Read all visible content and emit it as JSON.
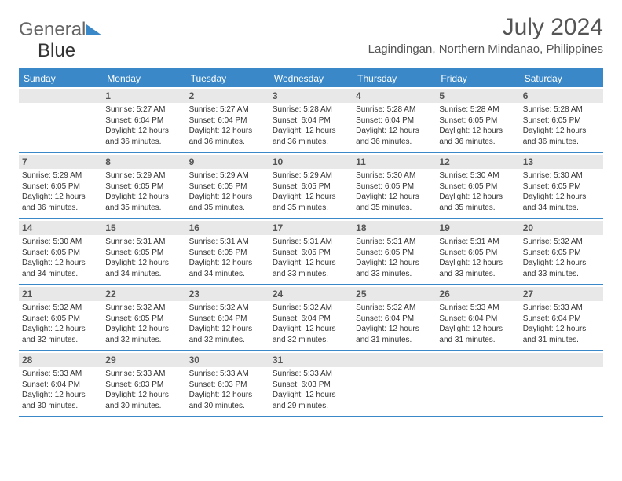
{
  "logo": {
    "part1": "General",
    "part2": "Blue"
  },
  "header": {
    "month_title": "July 2024",
    "location": "Lagindingan, Northern Mindanao, Philippines"
  },
  "colors": {
    "accent": "#3a88c8",
    "header_text": "#ffffff",
    "daynum_bg": "#e8e8e8",
    "text": "#333333",
    "title_text": "#555555"
  },
  "day_names": [
    "Sunday",
    "Monday",
    "Tuesday",
    "Wednesday",
    "Thursday",
    "Friday",
    "Saturday"
  ],
  "weeks": [
    [
      {
        "n": "",
        "sr": "",
        "ss": "",
        "dl": ""
      },
      {
        "n": "1",
        "sr": "Sunrise: 5:27 AM",
        "ss": "Sunset: 6:04 PM",
        "dl": "Daylight: 12 hours and 36 minutes."
      },
      {
        "n": "2",
        "sr": "Sunrise: 5:27 AM",
        "ss": "Sunset: 6:04 PM",
        "dl": "Daylight: 12 hours and 36 minutes."
      },
      {
        "n": "3",
        "sr": "Sunrise: 5:28 AM",
        "ss": "Sunset: 6:04 PM",
        "dl": "Daylight: 12 hours and 36 minutes."
      },
      {
        "n": "4",
        "sr": "Sunrise: 5:28 AM",
        "ss": "Sunset: 6:04 PM",
        "dl": "Daylight: 12 hours and 36 minutes."
      },
      {
        "n": "5",
        "sr": "Sunrise: 5:28 AM",
        "ss": "Sunset: 6:05 PM",
        "dl": "Daylight: 12 hours and 36 minutes."
      },
      {
        "n": "6",
        "sr": "Sunrise: 5:28 AM",
        "ss": "Sunset: 6:05 PM",
        "dl": "Daylight: 12 hours and 36 minutes."
      }
    ],
    [
      {
        "n": "7",
        "sr": "Sunrise: 5:29 AM",
        "ss": "Sunset: 6:05 PM",
        "dl": "Daylight: 12 hours and 36 minutes."
      },
      {
        "n": "8",
        "sr": "Sunrise: 5:29 AM",
        "ss": "Sunset: 6:05 PM",
        "dl": "Daylight: 12 hours and 35 minutes."
      },
      {
        "n": "9",
        "sr": "Sunrise: 5:29 AM",
        "ss": "Sunset: 6:05 PM",
        "dl": "Daylight: 12 hours and 35 minutes."
      },
      {
        "n": "10",
        "sr": "Sunrise: 5:29 AM",
        "ss": "Sunset: 6:05 PM",
        "dl": "Daylight: 12 hours and 35 minutes."
      },
      {
        "n": "11",
        "sr": "Sunrise: 5:30 AM",
        "ss": "Sunset: 6:05 PM",
        "dl": "Daylight: 12 hours and 35 minutes."
      },
      {
        "n": "12",
        "sr": "Sunrise: 5:30 AM",
        "ss": "Sunset: 6:05 PM",
        "dl": "Daylight: 12 hours and 35 minutes."
      },
      {
        "n": "13",
        "sr": "Sunrise: 5:30 AM",
        "ss": "Sunset: 6:05 PM",
        "dl": "Daylight: 12 hours and 34 minutes."
      }
    ],
    [
      {
        "n": "14",
        "sr": "Sunrise: 5:30 AM",
        "ss": "Sunset: 6:05 PM",
        "dl": "Daylight: 12 hours and 34 minutes."
      },
      {
        "n": "15",
        "sr": "Sunrise: 5:31 AM",
        "ss": "Sunset: 6:05 PM",
        "dl": "Daylight: 12 hours and 34 minutes."
      },
      {
        "n": "16",
        "sr": "Sunrise: 5:31 AM",
        "ss": "Sunset: 6:05 PM",
        "dl": "Daylight: 12 hours and 34 minutes."
      },
      {
        "n": "17",
        "sr": "Sunrise: 5:31 AM",
        "ss": "Sunset: 6:05 PM",
        "dl": "Daylight: 12 hours and 33 minutes."
      },
      {
        "n": "18",
        "sr": "Sunrise: 5:31 AM",
        "ss": "Sunset: 6:05 PM",
        "dl": "Daylight: 12 hours and 33 minutes."
      },
      {
        "n": "19",
        "sr": "Sunrise: 5:31 AM",
        "ss": "Sunset: 6:05 PM",
        "dl": "Daylight: 12 hours and 33 minutes."
      },
      {
        "n": "20",
        "sr": "Sunrise: 5:32 AM",
        "ss": "Sunset: 6:05 PM",
        "dl": "Daylight: 12 hours and 33 minutes."
      }
    ],
    [
      {
        "n": "21",
        "sr": "Sunrise: 5:32 AM",
        "ss": "Sunset: 6:05 PM",
        "dl": "Daylight: 12 hours and 32 minutes."
      },
      {
        "n": "22",
        "sr": "Sunrise: 5:32 AM",
        "ss": "Sunset: 6:05 PM",
        "dl": "Daylight: 12 hours and 32 minutes."
      },
      {
        "n": "23",
        "sr": "Sunrise: 5:32 AM",
        "ss": "Sunset: 6:04 PM",
        "dl": "Daylight: 12 hours and 32 minutes."
      },
      {
        "n": "24",
        "sr": "Sunrise: 5:32 AM",
        "ss": "Sunset: 6:04 PM",
        "dl": "Daylight: 12 hours and 32 minutes."
      },
      {
        "n": "25",
        "sr": "Sunrise: 5:32 AM",
        "ss": "Sunset: 6:04 PM",
        "dl": "Daylight: 12 hours and 31 minutes."
      },
      {
        "n": "26",
        "sr": "Sunrise: 5:33 AM",
        "ss": "Sunset: 6:04 PM",
        "dl": "Daylight: 12 hours and 31 minutes."
      },
      {
        "n": "27",
        "sr": "Sunrise: 5:33 AM",
        "ss": "Sunset: 6:04 PM",
        "dl": "Daylight: 12 hours and 31 minutes."
      }
    ],
    [
      {
        "n": "28",
        "sr": "Sunrise: 5:33 AM",
        "ss": "Sunset: 6:04 PM",
        "dl": "Daylight: 12 hours and 30 minutes."
      },
      {
        "n": "29",
        "sr": "Sunrise: 5:33 AM",
        "ss": "Sunset: 6:03 PM",
        "dl": "Daylight: 12 hours and 30 minutes."
      },
      {
        "n": "30",
        "sr": "Sunrise: 5:33 AM",
        "ss": "Sunset: 6:03 PM",
        "dl": "Daylight: 12 hours and 30 minutes."
      },
      {
        "n": "31",
        "sr": "Sunrise: 5:33 AM",
        "ss": "Sunset: 6:03 PM",
        "dl": "Daylight: 12 hours and 29 minutes."
      },
      {
        "n": "",
        "sr": "",
        "ss": "",
        "dl": ""
      },
      {
        "n": "",
        "sr": "",
        "ss": "",
        "dl": ""
      },
      {
        "n": "",
        "sr": "",
        "ss": "",
        "dl": ""
      }
    ]
  ]
}
